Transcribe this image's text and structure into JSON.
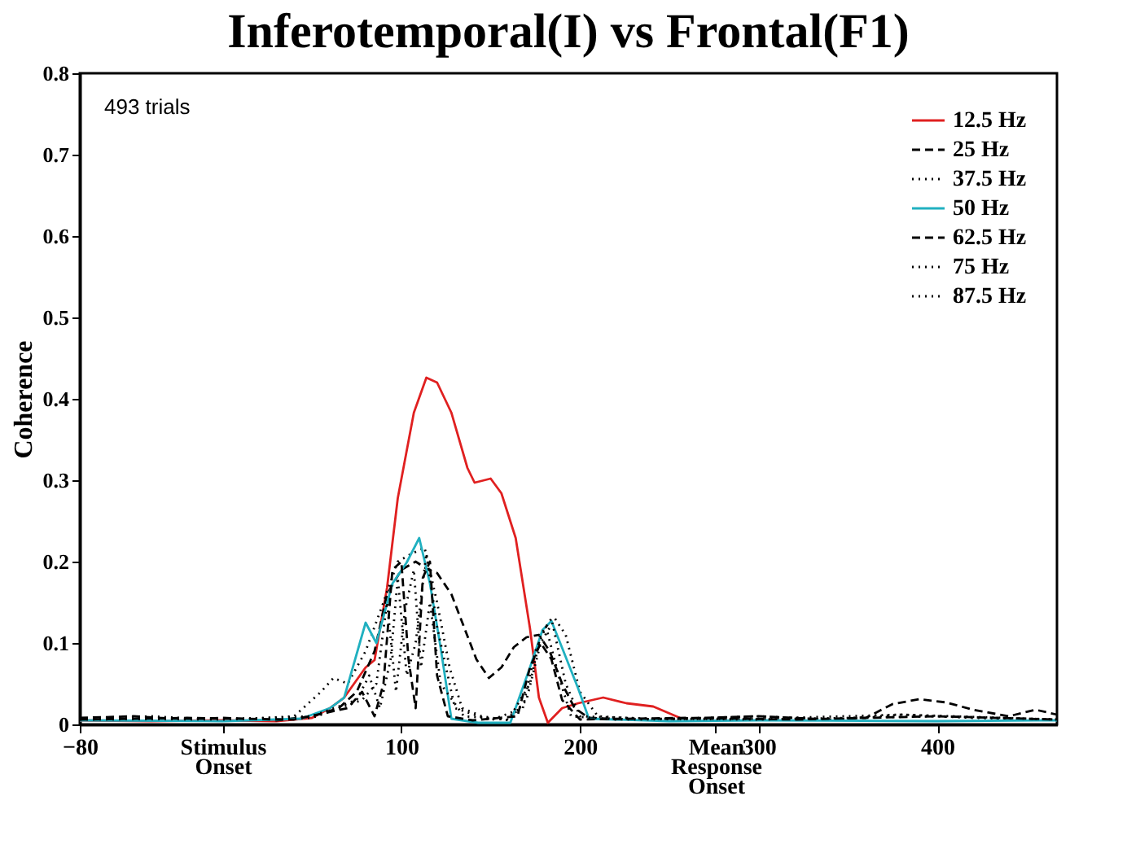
{
  "chart_data": {
    "type": "line",
    "title": "Inferotemporal(I) vs Frontal(F1)",
    "ylabel": "Coherence",
    "annotations": [
      "493 trials"
    ],
    "xlim": [
      -80,
      467
    ],
    "xticks": [
      -80,
      100,
      200,
      300,
      400,
      {
        "value": 0,
        "label": "Stimulus\nOnset"
      },
      {
        "value": 276,
        "label": "Mean\nResponse\nOnset"
      }
    ],
    "ylim": [
      0,
      0.8
    ],
    "yticks": [
      0,
      0.1,
      0.2,
      0.3,
      0.4,
      0.5,
      0.6,
      0.7,
      0.8
    ],
    "grid": false,
    "legend": "top right",
    "marker": "none",
    "series": [
      {
        "name": "12.5 Hz",
        "color": "#e02020",
        "line_style": "solid",
        "x": [
          -80,
          -40,
          0,
          30,
          50,
          60,
          68,
          80,
          85,
          92,
          98,
          107,
          114,
          120,
          128,
          137,
          141,
          150,
          156,
          164,
          172,
          177,
          182,
          190,
          199,
          213,
          226,
          241,
          256
        ],
        "values": [
          0.005,
          0.004,
          0.005,
          0.004,
          0.008,
          0.02,
          0.033,
          0.07,
          0.079,
          0.168,
          0.278,
          0.383,
          0.426,
          0.42,
          0.383,
          0.315,
          0.297,
          0.302,
          0.284,
          0.229,
          0.118,
          0.033,
          0.002,
          0.02,
          0.026,
          0.033,
          0.026,
          0.022,
          0.008
        ]
      },
      {
        "name": "25 Hz",
        "color": "#000000",
        "line_style": "dashed",
        "x": [
          -80,
          -50,
          -20,
          0,
          30,
          50,
          65,
          75,
          85,
          92,
          100,
          108,
          115,
          120,
          128,
          135,
          142,
          149,
          156,
          163,
          170,
          177,
          183,
          190,
          197,
          205,
          230,
          270,
          300,
          340,
          360,
          375,
          390,
          405,
          420,
          440,
          455,
          467
        ],
        "values": [
          0.008,
          0.01,
          0.006,
          0.008,
          0.005,
          0.01,
          0.02,
          0.04,
          0.09,
          0.16,
          0.19,
          0.2,
          0.19,
          0.186,
          0.16,
          0.12,
          0.08,
          0.057,
          0.07,
          0.095,
          0.107,
          0.11,
          0.09,
          0.05,
          0.02,
          0.008,
          0.006,
          0.008,
          0.01,
          0.006,
          0.008,
          0.025,
          0.031,
          0.027,
          0.018,
          0.01,
          0.018,
          0.012
        ]
      },
      {
        "name": "37.5 Hz",
        "color": "#000000",
        "line_style": "dotted",
        "x": [
          -80,
          -40,
          0,
          40,
          55,
          62,
          70,
          80,
          90,
          98,
          106,
          113,
          120,
          127,
          134,
          145,
          160,
          170,
          178,
          186,
          192,
          200,
          210,
          240,
          270,
          300,
          340,
          380,
          420,
          467
        ],
        "values": [
          0.006,
          0.01,
          0.005,
          0.01,
          0.04,
          0.057,
          0.05,
          0.09,
          0.15,
          0.2,
          0.21,
          0.217,
          0.15,
          0.07,
          0.02,
          0.01,
          0.005,
          0.03,
          0.1,
          0.13,
          0.11,
          0.04,
          0.01,
          0.006,
          0.008,
          0.01,
          0.006,
          0.012,
          0.008,
          0.006
        ]
      },
      {
        "name": "50 Hz",
        "color": "#20b0c0",
        "line_style": "solid",
        "x": [
          -80,
          0,
          44,
          60,
          68,
          80,
          86,
          95,
          103,
          110,
          116,
          122,
          128,
          143,
          161,
          172,
          179,
          184,
          190,
          199,
          205,
          250,
          300,
          400,
          467
        ],
        "values": [
          0.005,
          0.004,
          0.007,
          0.02,
          0.033,
          0.125,
          0.1,
          0.173,
          0.199,
          0.229,
          0.173,
          0.094,
          0.007,
          0.002,
          0.002,
          0.07,
          0.116,
          0.127,
          0.094,
          0.044,
          0.007,
          0.004,
          0.005,
          0.004,
          0.005
        ]
      },
      {
        "name": "62.5 Hz",
        "color": "#000000",
        "line_style": "dashed",
        "x": [
          -80,
          -20,
          40,
          70,
          78,
          85,
          90,
          95,
          100,
          104,
          108,
          112,
          116,
          120,
          126,
          140,
          165,
          172,
          178,
          184,
          190,
          200,
          260,
          320,
          400,
          467
        ],
        "values": [
          0.006,
          0.008,
          0.006,
          0.02,
          0.04,
          0.01,
          0.05,
          0.19,
          0.2,
          0.08,
          0.02,
          0.18,
          0.2,
          0.06,
          0.01,
          0.005,
          0.01,
          0.07,
          0.1,
          0.08,
          0.03,
          0.006,
          0.008,
          0.006,
          0.01,
          0.006
        ]
      },
      {
        "name": "75 Hz",
        "color": "#000000",
        "line_style": "dotted",
        "x": [
          -80,
          0,
          50,
          75,
          82,
          88,
          94,
          98,
          103,
          108,
          114,
          120,
          130,
          150,
          168,
          175,
          181,
          188,
          195,
          220,
          300,
          380,
          467
        ],
        "values": [
          0.007,
          0.006,
          0.01,
          0.03,
          0.06,
          0.02,
          0.08,
          0.18,
          0.06,
          0.1,
          0.21,
          0.12,
          0.02,
          0.005,
          0.02,
          0.09,
          0.12,
          0.06,
          0.01,
          0.006,
          0.007,
          0.012,
          0.006
        ]
      },
      {
        "name": "87.5 Hz",
        "color": "#000000",
        "line_style": "dotted",
        "x": [
          -80,
          0,
          50,
          78,
          86,
          92,
          97,
          102,
          107,
          111,
          116,
          122,
          135,
          160,
          172,
          178,
          184,
          192,
          200,
          240,
          300,
          400,
          467
        ],
        "values": [
          0.006,
          0.007,
          0.008,
          0.03,
          0.05,
          0.15,
          0.04,
          0.14,
          0.19,
          0.07,
          0.15,
          0.05,
          0.01,
          0.006,
          0.05,
          0.11,
          0.13,
          0.05,
          0.01,
          0.007,
          0.006,
          0.01,
          0.006
        ]
      }
    ]
  }
}
